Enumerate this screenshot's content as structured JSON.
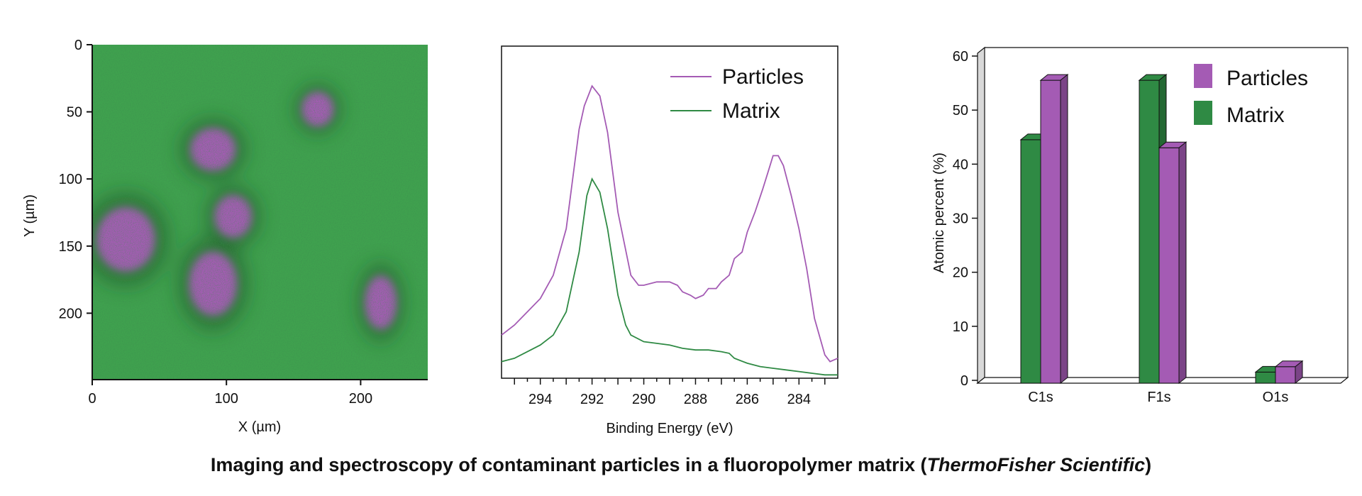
{
  "colors": {
    "particles": "#a45bb4",
    "matrix": "#2f8a44",
    "map_green": "#3fa24e"
  },
  "caption": {
    "main": "Imaging and spectroscopy of contaminant particles in a fluoropolymer matrix (",
    "italic": "ThermoFisher Scientific",
    "end": ")"
  },
  "chart_data": [
    {
      "type": "heatmap",
      "xlabel": "X (µm)",
      "ylabel": "Y (µm)",
      "xlim": [
        0,
        250
      ],
      "ylim": [
        0,
        250
      ],
      "y_inverted": true,
      "x_ticks": [
        "0",
        "100",
        "200"
      ],
      "y_ticks": [
        "0",
        "50",
        "100",
        "150",
        "200"
      ],
      "particles": [
        {
          "x": 25,
          "y": 145,
          "rx": 22,
          "ry": 24
        },
        {
          "x": 90,
          "y": 78,
          "rx": 17,
          "ry": 16
        },
        {
          "x": 105,
          "y": 128,
          "rx": 14,
          "ry": 16
        },
        {
          "x": 90,
          "y": 178,
          "rx": 18,
          "ry": 24
        },
        {
          "x": 168,
          "y": 48,
          "rx": 12,
          "ry": 13
        },
        {
          "x": 215,
          "y": 192,
          "rx": 12,
          "ry": 20
        }
      ]
    },
    {
      "type": "line",
      "xlabel": "Binding Energy (eV)",
      "ylabel": "",
      "xlim": [
        295.5,
        282.5
      ],
      "x_reversed": true,
      "ylim": [
        0,
        100
      ],
      "x_ticks": [
        "294",
        "292",
        "290",
        "288",
        "286",
        "284"
      ],
      "series": [
        {
          "name": "Particles",
          "color": "#a45bb4",
          "points": [
            [
              295.5,
              13
            ],
            [
              295,
              16
            ],
            [
              294.5,
              20
            ],
            [
              294,
              24
            ],
            [
              293.5,
              31
            ],
            [
              293,
              45
            ],
            [
              292.5,
              75
            ],
            [
              292.3,
              82
            ],
            [
              292,
              88
            ],
            [
              291.7,
              85
            ],
            [
              291.4,
              74
            ],
            [
              291,
              50
            ],
            [
              290.5,
              31
            ],
            [
              290.2,
              28
            ],
            [
              290,
              28
            ],
            [
              289.5,
              29
            ],
            [
              289,
              29
            ],
            [
              288.7,
              28
            ],
            [
              288.5,
              26
            ],
            [
              288.2,
              25
            ],
            [
              288,
              24
            ],
            [
              287.7,
              25
            ],
            [
              287.5,
              27
            ],
            [
              287.2,
              27
            ],
            [
              287,
              29
            ],
            [
              286.7,
              31
            ],
            [
              286.5,
              36
            ],
            [
              286.2,
              38
            ],
            [
              286,
              44
            ],
            [
              285.7,
              50
            ],
            [
              285.4,
              57
            ],
            [
              285.2,
              62
            ],
            [
              285,
              67
            ],
            [
              284.8,
              67
            ],
            [
              284.6,
              64
            ],
            [
              284.3,
              55
            ],
            [
              284,
              45
            ],
            [
              283.7,
              33
            ],
            [
              283.4,
              18
            ],
            [
              283,
              7
            ],
            [
              282.8,
              5
            ],
            [
              282.5,
              6
            ]
          ]
        },
        {
          "name": "Matrix",
          "color": "#2f8a44",
          "points": [
            [
              295.5,
              5
            ],
            [
              295,
              6
            ],
            [
              294.5,
              8
            ],
            [
              294,
              10
            ],
            [
              293.5,
              13
            ],
            [
              293,
              20
            ],
            [
              292.5,
              38
            ],
            [
              292.2,
              55
            ],
            [
              292,
              60
            ],
            [
              291.7,
              56
            ],
            [
              291.4,
              45
            ],
            [
              291,
              25
            ],
            [
              290.7,
              16
            ],
            [
              290.5,
              13
            ],
            [
              290,
              11
            ],
            [
              289.5,
              10.5
            ],
            [
              289,
              10
            ],
            [
              288.5,
              9
            ],
            [
              288,
              8.5
            ],
            [
              287.5,
              8.5
            ],
            [
              287,
              8
            ],
            [
              286.7,
              7.5
            ],
            [
              286.5,
              6
            ],
            [
              286,
              4.5
            ],
            [
              285.5,
              3.5
            ],
            [
              285,
              3
            ],
            [
              284.5,
              2.5
            ],
            [
              284,
              2
            ],
            [
              283.5,
              1.5
            ],
            [
              283,
              1
            ],
            [
              282.5,
              1
            ]
          ]
        }
      ],
      "legend_position": "top-right"
    },
    {
      "type": "bar",
      "ylabel": "Atomic percent (%)",
      "xlabel": "",
      "ylim": [
        0,
        60
      ],
      "y_ticks": [
        "0",
        "10",
        "20",
        "30",
        "40",
        "50",
        "60"
      ],
      "categories": [
        "C1s",
        "F1s",
        "O1s"
      ],
      "series": [
        {
          "name": "Matrix",
          "color": "#2f8a44",
          "values": [
            44,
            55,
            1
          ]
        },
        {
          "name": "Particles",
          "color": "#a45bb4",
          "values": [
            55,
            42.5,
            2
          ]
        }
      ],
      "legend_position": "top-right",
      "legend_order": [
        "Particles",
        "Matrix"
      ]
    }
  ]
}
